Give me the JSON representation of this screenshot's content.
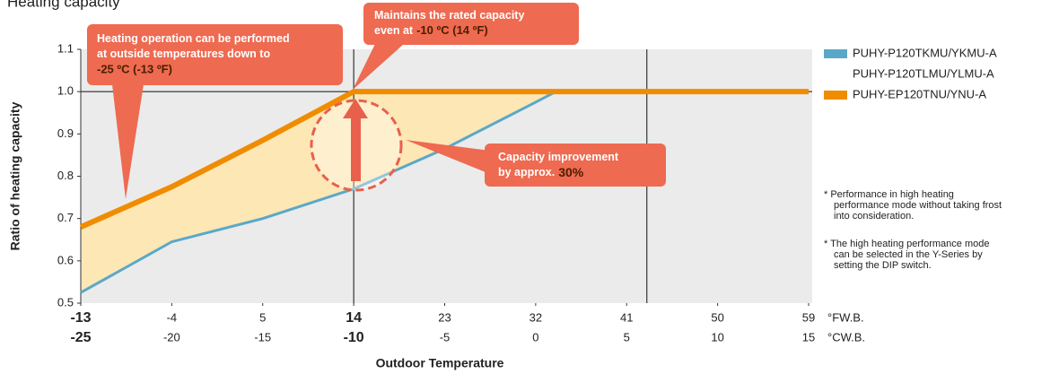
{
  "chart_data": {
    "type": "line",
    "title": "Heating capacity",
    "ylabel": "Ratio of heating capacity",
    "xlabel": "Outdoor Temperature",
    "xunit": "°FW.B.",
    "x2unit": "°CW.B.",
    "xlim": [
      -13,
      59
    ],
    "xticks": [
      -13,
      -4,
      5,
      14,
      23,
      32,
      41,
      50,
      59
    ],
    "x2lim": [
      -25,
      15
    ],
    "x2ticks": [
      -25,
      -20,
      -15,
      -10,
      -5,
      0,
      5,
      10,
      15
    ],
    "ylim": [
      0.5,
      1.1
    ],
    "yticks": [
      0.5,
      0.6,
      0.7,
      0.8,
      0.9,
      1.0,
      1.1
    ],
    "ytick_labels": [
      "0.5",
      "0.6",
      "0.7",
      "0.8",
      "0.9",
      "1.0",
      "1.1"
    ],
    "vlines": [
      14,
      43
    ],
    "hlines": [
      1.0
    ],
    "series": [
      {
        "name": [
          "PUHY-P120TKMU/YKMU-A",
          "PUHY-P120TLMU/YLMU-A"
        ],
        "color": "#5aa8c8",
        "x": [
          -13,
          -4,
          5,
          14,
          23,
          32,
          34,
          59
        ],
        "values": [
          0.525,
          0.645,
          0.7,
          0.77,
          0.865,
          0.975,
          1.0,
          1.0
        ]
      },
      {
        "name": [
          "PUHY-EP120TNU/YNU-A"
        ],
        "color": "#f08c00",
        "x": [
          -13,
          -4,
          5,
          14,
          59
        ],
        "values": [
          0.68,
          0.775,
          0.885,
          1.0,
          1.0
        ]
      }
    ],
    "annotations": [
      {
        "text": [
          "Heating operation can be performed",
          "at outside temperatures down to"
        ],
        "highlight": "-25 ºC (-13 ºF)"
      },
      {
        "text": [
          "Maintains the rated capacity",
          "even at"
        ],
        "highlight": "-10 ºC (14 ºF)"
      },
      {
        "text": [
          "Capacity improvement",
          "by approx."
        ],
        "highlight": "30%"
      }
    ],
    "notes": [
      [
        "* Performance in high heating",
        "performance mode without taking frost",
        "into consideration."
      ],
      [
        "* The high heating performance mode",
        "can be selected in the Y-Series by",
        "setting the DIP switch."
      ]
    ]
  }
}
